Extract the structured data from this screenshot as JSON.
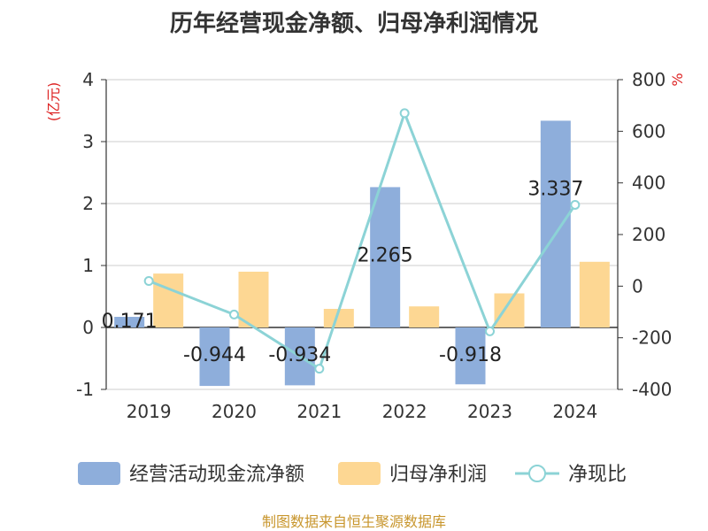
{
  "chart_data": {
    "type": "bar",
    "title": "历年经营现金净额、归母净利润情况",
    "categories": [
      "2019",
      "2020",
      "2021",
      "2022",
      "2023",
      "2024"
    ],
    "series": [
      {
        "name": "经营活动现金流净额",
        "type": "bar",
        "axis": "left",
        "color": "#8eaedb",
        "values": [
          0.171,
          -0.944,
          -0.934,
          2.265,
          -0.918,
          3.337
        ],
        "labels": [
          "0.171",
          "-0.944",
          "-0.934",
          "2.265",
          "-0.918",
          "3.337"
        ]
      },
      {
        "name": "归母净利润",
        "type": "bar",
        "axis": "left",
        "color": "#fdd793",
        "values": [
          0.87,
          0.9,
          0.3,
          0.34,
          0.55,
          1.06
        ]
      },
      {
        "name": "净现比",
        "type": "line",
        "axis": "right",
        "color": "#8cd3d6",
        "values": [
          20,
          -110,
          -320,
          670,
          -175,
          315
        ]
      }
    ],
    "left_axis": {
      "unit": "(亿元)",
      "ylim": [
        -1,
        4
      ],
      "ticks": [
        "4",
        "3",
        "2",
        "1",
        "0",
        "-1"
      ]
    },
    "right_axis": {
      "unit": "%",
      "ylim": [
        -400,
        800
      ],
      "ticks": [
        "800",
        "600",
        "400",
        "200",
        "0",
        "-200",
        "-400"
      ]
    },
    "legend_position": "bottom",
    "grid": true
  },
  "source_note": "制图数据来自恒生聚源数据库"
}
